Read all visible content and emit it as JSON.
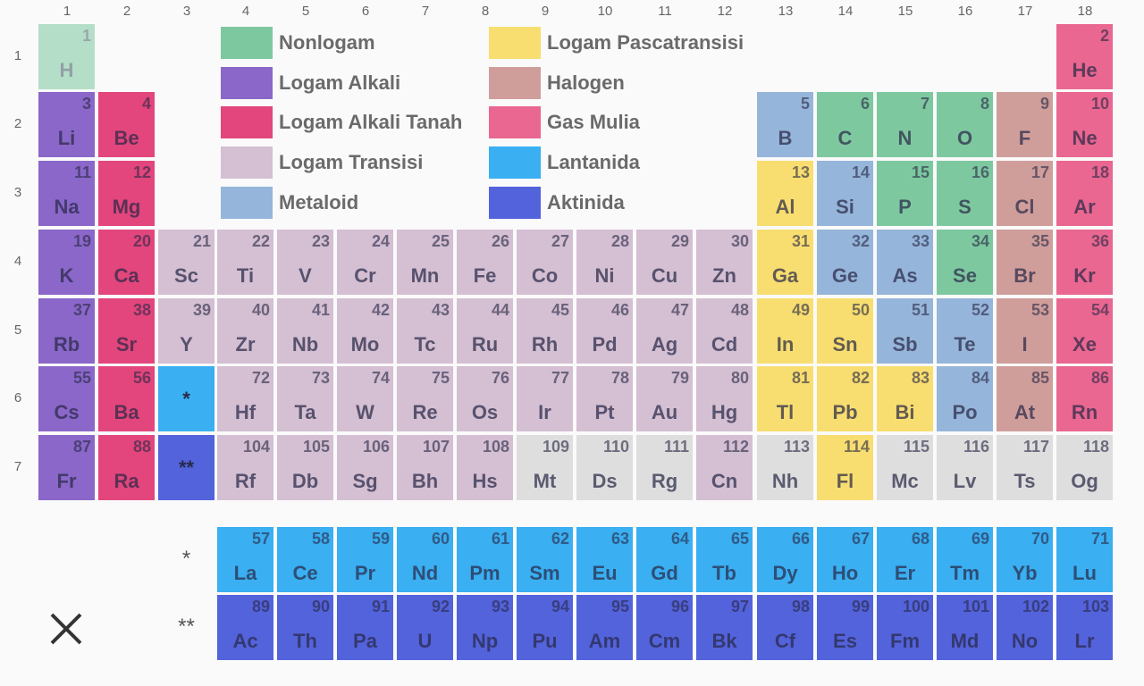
{
  "colors": {
    "nonmetal": "#7ec8a0",
    "alkali": "#8a67c9",
    "alkaline_earth": "#e2467c",
    "transition": "#d4bfd3",
    "metalloid": "#96b5da",
    "post_transition": "#f8de70",
    "halogen": "#cf9e9b",
    "noble_gas": "#e96790",
    "lanthanide": "#3aaff2",
    "actinide": "#5363dc",
    "unknown": "#dedede"
  },
  "column_numbers": [
    "1",
    "2",
    "3",
    "4",
    "5",
    "6",
    "7",
    "8",
    "9",
    "10",
    "11",
    "12",
    "13",
    "14",
    "15",
    "16",
    "17",
    "18"
  ],
  "row_numbers": [
    "1",
    "2",
    "3",
    "4",
    "5",
    "6",
    "7"
  ],
  "legend": [
    {
      "label": "Nonlogam",
      "category": "nonmetal"
    },
    {
      "label": "Logam Alkali",
      "category": "alkali"
    },
    {
      "label": "Logam Alkali Tanah",
      "category": "alkaline_earth"
    },
    {
      "label": "Logam Transisi",
      "category": "transition"
    },
    {
      "label": "Metaloid",
      "category": "metalloid"
    },
    {
      "label": "Logam Pascatransisi",
      "category": "post_transition"
    },
    {
      "label": "Halogen",
      "category": "halogen"
    },
    {
      "label": "Gas Mulia",
      "category": "noble_gas"
    },
    {
      "label": "Lantanida",
      "category": "lanthanide"
    },
    {
      "label": "Aktinida",
      "category": "actinide"
    }
  ],
  "elements": [
    {
      "n": "1",
      "s": "H",
      "c": "nonmetal",
      "faded": true
    },
    {
      "n": "2",
      "s": "He",
      "c": "noble_gas"
    },
    {
      "n": "3",
      "s": "Li",
      "c": "alkali"
    },
    {
      "n": "4",
      "s": "Be",
      "c": "alkaline_earth"
    },
    {
      "n": "5",
      "s": "B",
      "c": "metalloid"
    },
    {
      "n": "6",
      "s": "C",
      "c": "nonmetal"
    },
    {
      "n": "7",
      "s": "N",
      "c": "nonmetal"
    },
    {
      "n": "8",
      "s": "O",
      "c": "nonmetal"
    },
    {
      "n": "9",
      "s": "F",
      "c": "halogen"
    },
    {
      "n": "10",
      "s": "Ne",
      "c": "noble_gas"
    },
    {
      "n": "11",
      "s": "Na",
      "c": "alkali"
    },
    {
      "n": "12",
      "s": "Mg",
      "c": "alkaline_earth"
    },
    {
      "n": "13",
      "s": "Al",
      "c": "post_transition"
    },
    {
      "n": "14",
      "s": "Si",
      "c": "metalloid"
    },
    {
      "n": "15",
      "s": "P",
      "c": "nonmetal"
    },
    {
      "n": "16",
      "s": "S",
      "c": "nonmetal"
    },
    {
      "n": "17",
      "s": "Cl",
      "c": "halogen"
    },
    {
      "n": "18",
      "s": "Ar",
      "c": "noble_gas"
    },
    {
      "n": "19",
      "s": "K",
      "c": "alkali"
    },
    {
      "n": "20",
      "s": "Ca",
      "c": "alkaline_earth"
    },
    {
      "n": "21",
      "s": "Sc",
      "c": "transition"
    },
    {
      "n": "22",
      "s": "Ti",
      "c": "transition"
    },
    {
      "n": "23",
      "s": "V",
      "c": "transition"
    },
    {
      "n": "24",
      "s": "Cr",
      "c": "transition"
    },
    {
      "n": "25",
      "s": "Mn",
      "c": "transition"
    },
    {
      "n": "26",
      "s": "Fe",
      "c": "transition"
    },
    {
      "n": "27",
      "s": "Co",
      "c": "transition"
    },
    {
      "n": "28",
      "s": "Ni",
      "c": "transition"
    },
    {
      "n": "29",
      "s": "Cu",
      "c": "transition"
    },
    {
      "n": "30",
      "s": "Zn",
      "c": "transition"
    },
    {
      "n": "31",
      "s": "Ga",
      "c": "post_transition"
    },
    {
      "n": "32",
      "s": "Ge",
      "c": "metalloid"
    },
    {
      "n": "33",
      "s": "As",
      "c": "metalloid"
    },
    {
      "n": "34",
      "s": "Se",
      "c": "nonmetal"
    },
    {
      "n": "35",
      "s": "Br",
      "c": "halogen"
    },
    {
      "n": "36",
      "s": "Kr",
      "c": "noble_gas"
    },
    {
      "n": "37",
      "s": "Rb",
      "c": "alkali"
    },
    {
      "n": "38",
      "s": "Sr",
      "c": "alkaline_earth"
    },
    {
      "n": "39",
      "s": "Y",
      "c": "transition"
    },
    {
      "n": "40",
      "s": "Zr",
      "c": "transition"
    },
    {
      "n": "41",
      "s": "Nb",
      "c": "transition"
    },
    {
      "n": "42",
      "s": "Mo",
      "c": "transition"
    },
    {
      "n": "43",
      "s": "Tc",
      "c": "transition"
    },
    {
      "n": "44",
      "s": "Ru",
      "c": "transition"
    },
    {
      "n": "45",
      "s": "Rh",
      "c": "transition"
    },
    {
      "n": "46",
      "s": "Pd",
      "c": "transition"
    },
    {
      "n": "47",
      "s": "Ag",
      "c": "transition"
    },
    {
      "n": "48",
      "s": "Cd",
      "c": "transition"
    },
    {
      "n": "49",
      "s": "In",
      "c": "post_transition"
    },
    {
      "n": "50",
      "s": "Sn",
      "c": "post_transition"
    },
    {
      "n": "51",
      "s": "Sb",
      "c": "metalloid"
    },
    {
      "n": "52",
      "s": "Te",
      "c": "metalloid"
    },
    {
      "n": "53",
      "s": "I",
      "c": "halogen"
    },
    {
      "n": "54",
      "s": "Xe",
      "c": "noble_gas"
    },
    {
      "n": "55",
      "s": "Cs",
      "c": "alkali"
    },
    {
      "n": "56",
      "s": "Ba",
      "c": "alkaline_earth"
    },
    {
      "n": "72",
      "s": "Hf",
      "c": "transition"
    },
    {
      "n": "73",
      "s": "Ta",
      "c": "transition"
    },
    {
      "n": "74",
      "s": "W",
      "c": "transition"
    },
    {
      "n": "75",
      "s": "Re",
      "c": "transition"
    },
    {
      "n": "76",
      "s": "Os",
      "c": "transition"
    },
    {
      "n": "77",
      "s": "Ir",
      "c": "transition"
    },
    {
      "n": "78",
      "s": "Pt",
      "c": "transition"
    },
    {
      "n": "79",
      "s": "Au",
      "c": "transition"
    },
    {
      "n": "80",
      "s": "Hg",
      "c": "transition"
    },
    {
      "n": "81",
      "s": "Tl",
      "c": "post_transition"
    },
    {
      "n": "82",
      "s": "Pb",
      "c": "post_transition"
    },
    {
      "n": "83",
      "s": "Bi",
      "c": "post_transition"
    },
    {
      "n": "84",
      "s": "Po",
      "c": "metalloid"
    },
    {
      "n": "85",
      "s": "At",
      "c": "halogen"
    },
    {
      "n": "86",
      "s": "Rn",
      "c": "noble_gas"
    },
    {
      "n": "87",
      "s": "Fr",
      "c": "alkali"
    },
    {
      "n": "88",
      "s": "Ra",
      "c": "alkaline_earth"
    },
    {
      "n": "104",
      "s": "Rf",
      "c": "transition"
    },
    {
      "n": "105",
      "s": "Db",
      "c": "transition"
    },
    {
      "n": "106",
      "s": "Sg",
      "c": "transition"
    },
    {
      "n": "107",
      "s": "Bh",
      "c": "transition"
    },
    {
      "n": "108",
      "s": "Hs",
      "c": "transition"
    },
    {
      "n": "109",
      "s": "Mt",
      "c": "unknown"
    },
    {
      "n": "110",
      "s": "Ds",
      "c": "unknown"
    },
    {
      "n": "111",
      "s": "Rg",
      "c": "unknown"
    },
    {
      "n": "112",
      "s": "Cn",
      "c": "transition"
    },
    {
      "n": "113",
      "s": "Nh",
      "c": "unknown"
    },
    {
      "n": "114",
      "s": "Fl",
      "c": "post_transition"
    },
    {
      "n": "115",
      "s": "Mc",
      "c": "unknown"
    },
    {
      "n": "116",
      "s": "Lv",
      "c": "unknown"
    },
    {
      "n": "117",
      "s": "Ts",
      "c": "unknown"
    },
    {
      "n": "118",
      "s": "Og",
      "c": "unknown"
    },
    {
      "n": "57",
      "s": "La",
      "c": "lanthanide"
    },
    {
      "n": "58",
      "s": "Ce",
      "c": "lanthanide"
    },
    {
      "n": "59",
      "s": "Pr",
      "c": "lanthanide"
    },
    {
      "n": "60",
      "s": "Nd",
      "c": "lanthanide"
    },
    {
      "n": "61",
      "s": "Pm",
      "c": "lanthanide"
    },
    {
      "n": "62",
      "s": "Sm",
      "c": "lanthanide"
    },
    {
      "n": "63",
      "s": "Eu",
      "c": "lanthanide"
    },
    {
      "n": "64",
      "s": "Gd",
      "c": "lanthanide"
    },
    {
      "n": "65",
      "s": "Tb",
      "c": "lanthanide"
    },
    {
      "n": "66",
      "s": "Dy",
      "c": "lanthanide"
    },
    {
      "n": "67",
      "s": "Ho",
      "c": "lanthanide"
    },
    {
      "n": "68",
      "s": "Er",
      "c": "lanthanide"
    },
    {
      "n": "69",
      "s": "Tm",
      "c": "lanthanide"
    },
    {
      "n": "70",
      "s": "Yb",
      "c": "lanthanide"
    },
    {
      "n": "71",
      "s": "Lu",
      "c": "lanthanide"
    },
    {
      "n": "89",
      "s": "Ac",
      "c": "actinide"
    },
    {
      "n": "90",
      "s": "Th",
      "c": "actinide"
    },
    {
      "n": "91",
      "s": "Pa",
      "c": "actinide"
    },
    {
      "n": "92",
      "s": "U",
      "c": "actinide"
    },
    {
      "n": "93",
      "s": "Np",
      "c": "actinide"
    },
    {
      "n": "94",
      "s": "Pu",
      "c": "actinide"
    },
    {
      "n": "95",
      "s": "Am",
      "c": "actinide"
    },
    {
      "n": "96",
      "s": "Cm",
      "c": "actinide"
    },
    {
      "n": "97",
      "s": "Bk",
      "c": "actinide"
    },
    {
      "n": "98",
      "s": "Cf",
      "c": "actinide"
    },
    {
      "n": "99",
      "s": "Es",
      "c": "actinide"
    },
    {
      "n": "100",
      "s": "Fm",
      "c": "actinide"
    },
    {
      "n": "101",
      "s": "Md",
      "c": "actinide"
    },
    {
      "n": "102",
      "s": "No",
      "c": "actinide"
    },
    {
      "n": "103",
      "s": "Lr",
      "c": "actinide"
    }
  ],
  "markers": {
    "lanthanide_marker": "*",
    "actinide_marker": "**"
  },
  "close_icon": "close-icon"
}
